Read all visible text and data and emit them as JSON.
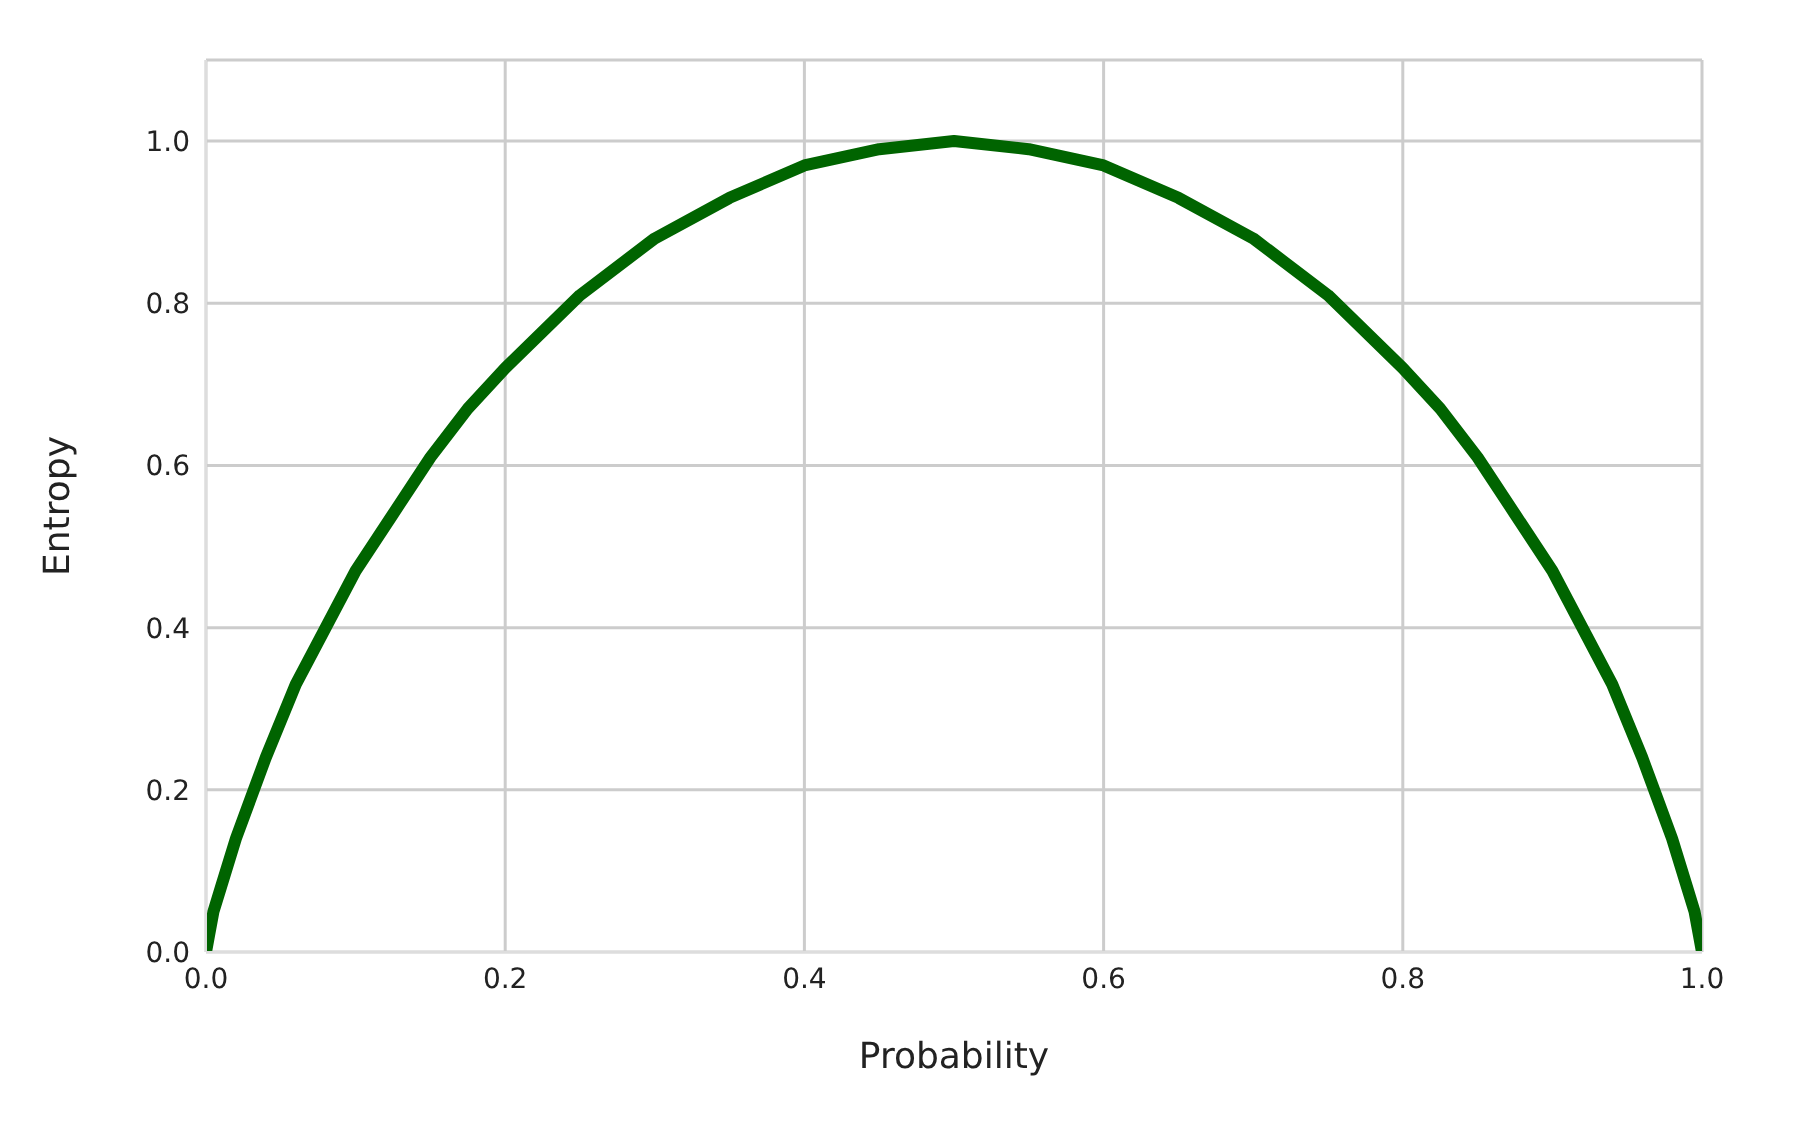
{
  "chart_data": {
    "type": "line",
    "xlabel": "Probability",
    "ylabel": "Entropy",
    "x": [
      0,
      0.002,
      0.005,
      0.01,
      0.02,
      0.03,
      0.04,
      0.06,
      0.08,
      0.1,
      0.125,
      0.15,
      0.175,
      0.2,
      0.25,
      0.3,
      0.35,
      0.4,
      0.45,
      0.5,
      0.55,
      0.6,
      0.65,
      0.7,
      0.75,
      0.8,
      0.825,
      0.85,
      0.875,
      0.9,
      0.92,
      0.94,
      0.96,
      0.97,
      0.98,
      0.99,
      0.995,
      0.998,
      1
    ],
    "series": [
      {
        "color": "#006400",
        "values": [
          0,
          0.02,
          0.05,
          0.08,
          0.14,
          0.19,
          0.24,
          0.33,
          0.4,
          0.47,
          0.54,
          0.61,
          0.67,
          0.72,
          0.81,
          0.88,
          0.93,
          0.97,
          0.99,
          1.0,
          0.99,
          0.97,
          0.93,
          0.88,
          0.81,
          0.72,
          0.67,
          0.61,
          0.54,
          0.47,
          0.4,
          0.33,
          0.24,
          0.19,
          0.14,
          0.08,
          0.05,
          0.02,
          0
        ]
      }
    ],
    "xlim": [
      0,
      1
    ],
    "ylim": [
      0,
      1.1
    ],
    "xticks": [
      {
        "value": 0,
        "label": "0.0"
      },
      0.2,
      0.4,
      0.6,
      0.8,
      {
        "value": 1,
        "label": "1.0"
      }
    ],
    "yticks": [
      {
        "value": 0,
        "label": "0.0"
      },
      0.2,
      0.4,
      0.6,
      0.8,
      {
        "value": 1,
        "label": "1.0"
      }
    ],
    "grid": true,
    "marker": "none",
    "line_style": "solid"
  }
}
